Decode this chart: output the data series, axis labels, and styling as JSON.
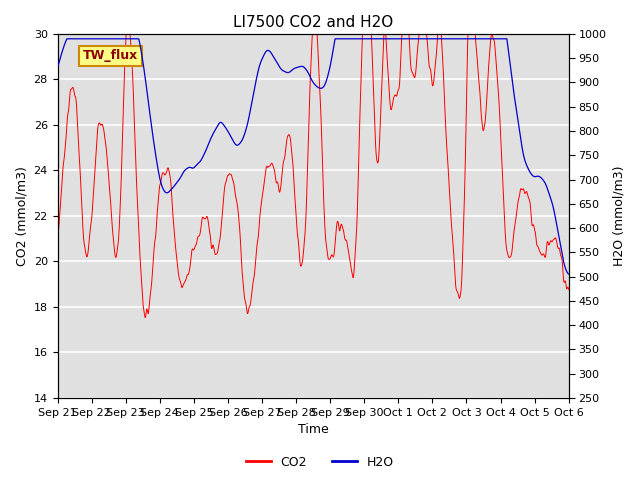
{
  "title": "LI7500 CO2 and H2O",
  "xlabel": "Time",
  "ylabel_left": "CO2 (mmol/m3)",
  "ylabel_right": "H2O (mmol/m3)",
  "ylim_left": [
    14,
    30
  ],
  "ylim_right": [
    250,
    1000
  ],
  "yticks_left": [
    14,
    16,
    18,
    20,
    22,
    24,
    26,
    28,
    30
  ],
  "yticks_right": [
    250,
    300,
    350,
    400,
    450,
    500,
    550,
    600,
    650,
    700,
    750,
    800,
    850,
    900,
    950,
    1000
  ],
  "co2_color": "#FF0000",
  "h2o_color": "#0000CC",
  "bg_color": "#E0E0E0",
  "annotation_text": "TW_flux",
  "annotation_bg": "#FFFF88",
  "annotation_border": "#CC8800",
  "legend_co2": "CO2",
  "legend_h2o": "H2O",
  "title_fontsize": 11,
  "axis_fontsize": 9,
  "tick_fontsize": 8,
  "legend_fontsize": 9,
  "x_tick_labels": [
    "Sep 21",
    "Sep 22",
    "Sep 23",
    "Sep 24",
    "Sep 25",
    "Sep 26",
    "Sep 27",
    "Sep 28",
    "Sep 29",
    "Sep 30",
    "Oct 1",
    "Oct 2",
    "Oct 3",
    "Oct 4",
    "Oct 5",
    "Oct 6"
  ],
  "num_points": 2000
}
